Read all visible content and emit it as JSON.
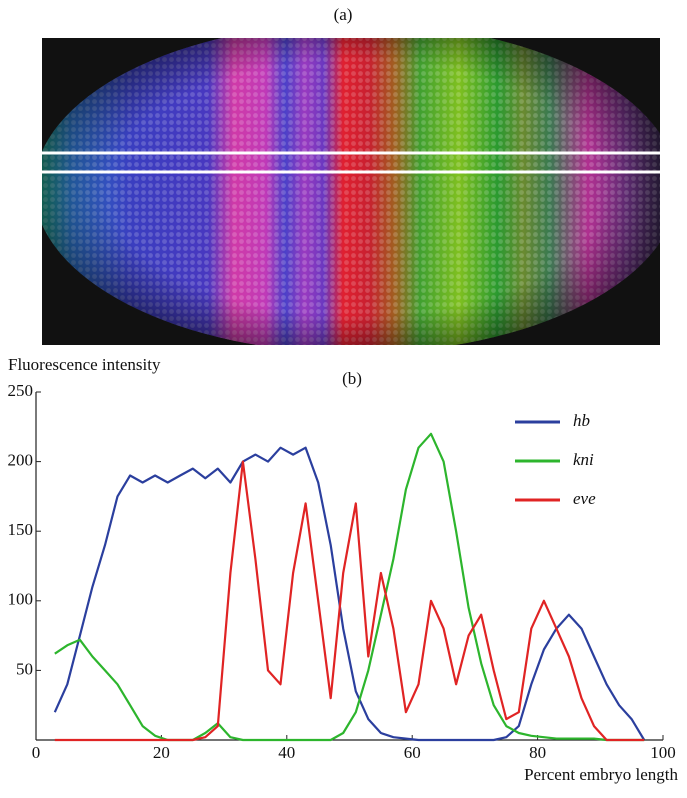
{
  "image_panel": {
    "label": "(a)"
  },
  "chart_data": {
    "type": "line",
    "panel_label": "(b)",
    "y_label": "Fluorescence intensity",
    "x_label": "Percent embryo length",
    "x": [
      3,
      5,
      7,
      9,
      11,
      13,
      15,
      17,
      19,
      21,
      23,
      25,
      27,
      29,
      31,
      33,
      35,
      37,
      39,
      41,
      43,
      45,
      47,
      49,
      51,
      53,
      55,
      57,
      59,
      61,
      63,
      65,
      67,
      69,
      71,
      73,
      75,
      77,
      79,
      81,
      83,
      85,
      87,
      89,
      91,
      93,
      95,
      97
    ],
    "series": [
      {
        "name": "hb",
        "color": "#2b3f9e",
        "values": [
          20,
          40,
          75,
          110,
          140,
          175,
          190,
          185,
          190,
          185,
          190,
          195,
          188,
          195,
          185,
          200,
          205,
          200,
          210,
          205,
          210,
          185,
          140,
          80,
          35,
          15,
          5,
          2,
          1,
          0,
          0,
          0,
          0,
          0,
          0,
          0,
          2,
          10,
          40,
          65,
          80,
          90,
          80,
          60,
          40,
          25,
          15,
          0
        ]
      },
      {
        "name": "kni",
        "color": "#2db52d",
        "values": [
          62,
          68,
          72,
          60,
          50,
          40,
          25,
          10,
          3,
          0,
          0,
          0,
          5,
          12,
          2,
          0,
          0,
          0,
          0,
          0,
          0,
          0,
          0,
          5,
          20,
          50,
          90,
          130,
          180,
          210,
          220,
          200,
          150,
          95,
          55,
          25,
          10,
          5,
          3,
          2,
          1,
          1,
          1,
          1,
          0,
          0,
          0,
          0
        ]
      },
      {
        "name": "eve",
        "color": "#e02424",
        "values": [
          0,
          0,
          0,
          0,
          0,
          0,
          0,
          0,
          0,
          0,
          0,
          0,
          2,
          10,
          120,
          200,
          130,
          50,
          40,
          120,
          170,
          100,
          30,
          120,
          170,
          60,
          120,
          80,
          20,
          40,
          100,
          80,
          40,
          75,
          90,
          50,
          15,
          20,
          80,
          100,
          80,
          60,
          30,
          10,
          0,
          0,
          0,
          0
        ]
      }
    ],
    "xlim": [
      0,
      100
    ],
    "xticks": [
      0,
      20,
      40,
      60,
      80,
      100
    ],
    "ylim": [
      0,
      250
    ],
    "yticks": [
      50,
      100,
      150,
      200,
      250
    ],
    "legend": "upper right"
  }
}
